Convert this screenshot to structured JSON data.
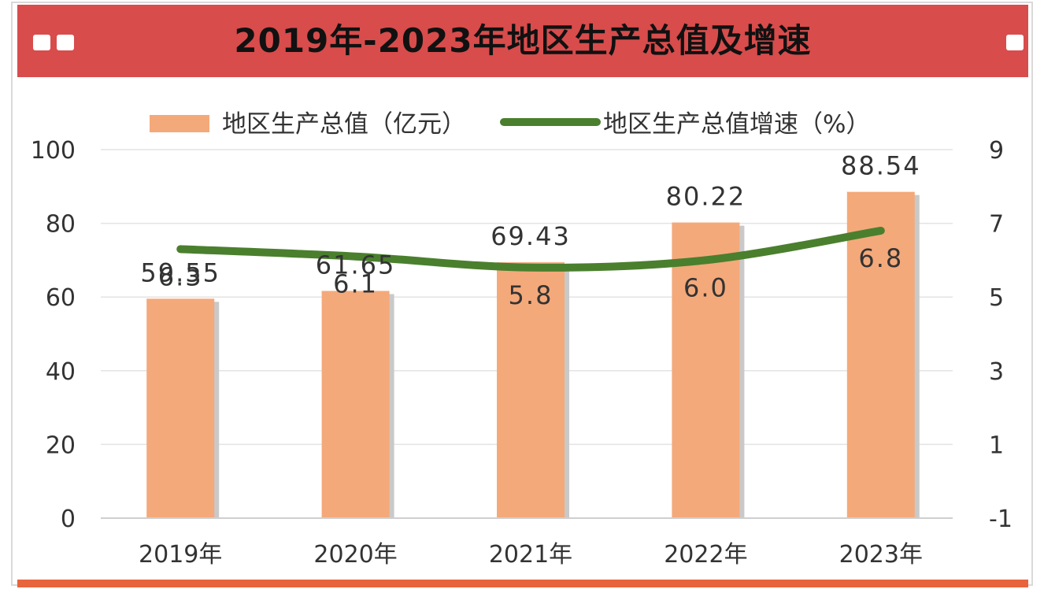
{
  "title": "2019年-2023年地区生产总值及增速",
  "colors": {
    "title_bar": "#d84c4c",
    "bar": "#f4a97a",
    "bar_shadow": "#c9c9c9",
    "line": "#4a7f2e",
    "bottom_bar": "#e8643c"
  },
  "chart_data": {
    "type": "bar",
    "categories": [
      "2019年",
      "2020年",
      "2021年",
      "2022年",
      "2023年"
    ],
    "series": [
      {
        "name": "地区生产总值（亿元）",
        "type": "bar",
        "axis": "left",
        "values": [
          59.55,
          61.65,
          69.43,
          80.22,
          88.54
        ],
        "labels": [
          "59.55",
          "61.65",
          "69.43",
          "80.22",
          "88.54"
        ]
      },
      {
        "name": "地区生产总值增速（%）",
        "type": "line",
        "axis": "right",
        "values": [
          6.3,
          6.1,
          5.8,
          6.0,
          6.8
        ],
        "labels": [
          "6.3",
          "6.1",
          "5.8",
          "6.0",
          "6.8"
        ]
      }
    ],
    "y_left": {
      "ticks": [
        "0",
        "20",
        "40",
        "60",
        "80",
        "100"
      ],
      "lim": [
        0,
        100
      ]
    },
    "y_right": {
      "ticks": [
        "-1",
        "1",
        "3",
        "5",
        "7",
        "9"
      ],
      "lim": [
        -1,
        9
      ]
    },
    "grid": true,
    "legend_position": "top"
  }
}
